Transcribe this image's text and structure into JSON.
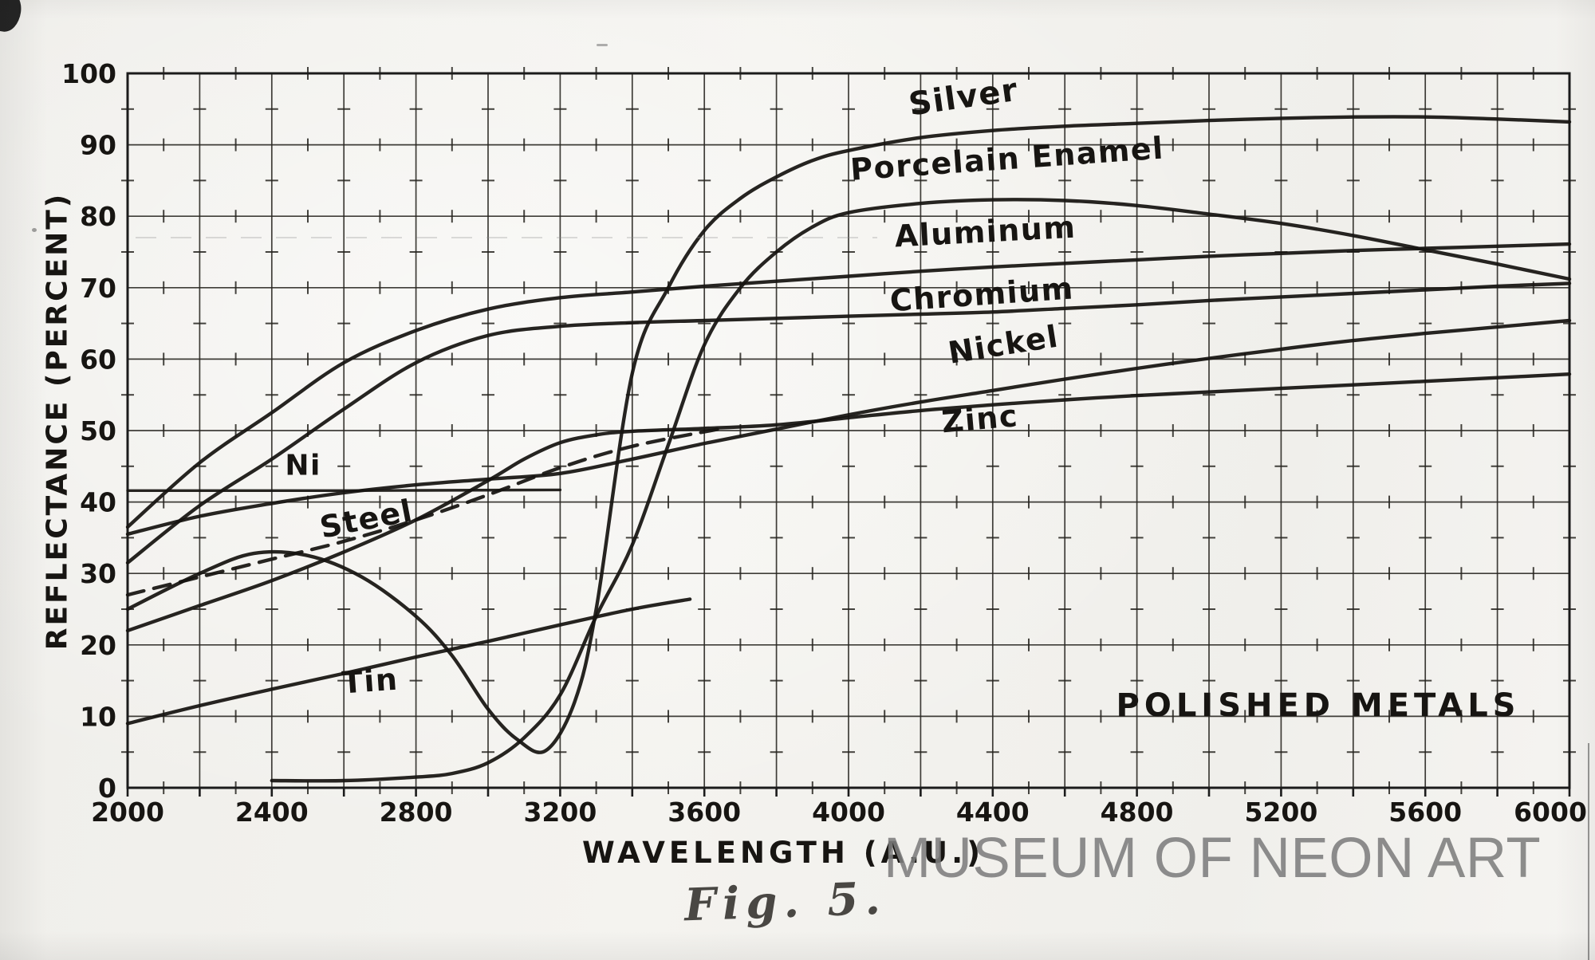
{
  "watermark": "MUSEUM OF NEON ART",
  "figure_caption": "Fig. 5.",
  "chart_data": {
    "type": "line",
    "title": "POLISHED METALS",
    "xlabel": "WAVELENGTH (A.U.)",
    "ylabel": "REFLECTANCE (PERCENT)",
    "xlim": [
      2000,
      6000
    ],
    "ylim": [
      0,
      100
    ],
    "grid": "on",
    "grid_x_step": 200,
    "grid_y_step": 10,
    "minor_tick_x_step": 100,
    "minor_tick_y_step": 5,
    "x_ticks": [
      2000,
      2400,
      2800,
      3200,
      3600,
      4000,
      4400,
      4800,
      5200,
      5600,
      6000
    ],
    "y_ticks": [
      0,
      10,
      20,
      30,
      40,
      50,
      60,
      70,
      80,
      90,
      100
    ],
    "legend_position": "labels-on-curves",
    "title_annotation_position": {
      "x": 5300,
      "y": 11.8
    },
    "ink_color": "#1b1b1b",
    "paper_color": "#f2f1ed",
    "series": [
      {
        "name": "Aluminum",
        "dashed": false,
        "label": {
          "text": "Aluminum",
          "x": 4381,
          "y": 76.4,
          "rotation": -3,
          "size": 38
        },
        "points": [
          [
            2000,
            36.5
          ],
          [
            2200,
            45.5
          ],
          [
            2400,
            52.5
          ],
          [
            2600,
            59.5
          ],
          [
            2800,
            64
          ],
          [
            3000,
            67
          ],
          [
            3200,
            68.6
          ],
          [
            3400,
            69.4
          ],
          [
            3600,
            70.2
          ],
          [
            3800,
            70.9
          ],
          [
            4000,
            71.6
          ],
          [
            4200,
            72.3
          ],
          [
            4400,
            72.9
          ],
          [
            4600,
            73.4
          ],
          [
            4800,
            73.9
          ],
          [
            5000,
            74.4
          ],
          [
            5200,
            74.8
          ],
          [
            5400,
            75.2
          ],
          [
            5600,
            75.5
          ],
          [
            5800,
            75.8
          ],
          [
            6000,
            76.1
          ]
        ]
      },
      {
        "name": "Chromium",
        "dashed": false,
        "label": {
          "text": "Chromium",
          "x": 4372,
          "y": 67.6,
          "rotation": -4,
          "size": 38
        },
        "points": [
          [
            2000,
            31.5
          ],
          [
            2200,
            39.5
          ],
          [
            2400,
            46
          ],
          [
            2600,
            53
          ],
          [
            2800,
            59.5
          ],
          [
            3000,
            63.3
          ],
          [
            3200,
            64.6
          ],
          [
            3400,
            65.1
          ],
          [
            3600,
            65.4
          ],
          [
            3800,
            65.7
          ],
          [
            4000,
            66
          ],
          [
            4200,
            66.3
          ],
          [
            4400,
            66.6
          ],
          [
            4600,
            67.1
          ],
          [
            4800,
            67.6
          ],
          [
            5000,
            68.2
          ],
          [
            5200,
            68.7
          ],
          [
            5400,
            69.2
          ],
          [
            5600,
            69.7
          ],
          [
            5800,
            70.2
          ],
          [
            6000,
            70.6
          ]
        ]
      },
      {
        "name": "Nickel",
        "dashed": false,
        "label": {
          "text": "Nickel",
          "x": 4434,
          "y": 60.6,
          "rotation": -9,
          "size": 38
        },
        "points": [
          [
            2000,
            35.5
          ],
          [
            2200,
            38
          ],
          [
            2400,
            39.8
          ],
          [
            2600,
            41.3
          ],
          [
            2800,
            42.4
          ],
          [
            3000,
            43.2
          ],
          [
            3200,
            44
          ],
          [
            3400,
            46
          ],
          [
            3600,
            48.2
          ],
          [
            3800,
            50.2
          ],
          [
            4000,
            52.2
          ],
          [
            4200,
            54
          ],
          [
            4400,
            55.6
          ],
          [
            4600,
            57.2
          ],
          [
            4800,
            58.7
          ],
          [
            5000,
            60.1
          ],
          [
            5200,
            61.4
          ],
          [
            5400,
            62.6
          ],
          [
            5600,
            63.6
          ],
          [
            5800,
            64.5
          ],
          [
            6000,
            65.4
          ]
        ]
      },
      {
        "name": "Zinc",
        "dashed": false,
        "label": {
          "text": "Zinc",
          "x": 4367,
          "y": 50.2,
          "rotation": -5,
          "size": 38
        },
        "points": [
          [
            2000,
            22
          ],
          [
            2200,
            25.5
          ],
          [
            2400,
            29
          ],
          [
            2600,
            33
          ],
          [
            2800,
            37.5
          ],
          [
            3000,
            43
          ],
          [
            3100,
            46
          ],
          [
            3200,
            48.3
          ],
          [
            3300,
            49.4
          ],
          [
            3400,
            49.9
          ],
          [
            3600,
            50.3
          ],
          [
            3800,
            50.8
          ],
          [
            4000,
            51.8
          ],
          [
            4200,
            52.8
          ],
          [
            4400,
            53.6
          ],
          [
            4600,
            54.3
          ],
          [
            4800,
            54.9
          ],
          [
            5000,
            55.4
          ],
          [
            5200,
            55.9
          ],
          [
            5400,
            56.4
          ],
          [
            5600,
            56.9
          ],
          [
            5800,
            57.4
          ],
          [
            6000,
            57.9
          ]
        ]
      },
      {
        "name": "Ni",
        "dashed": false,
        "thin": true,
        "label": {
          "text": "Ni",
          "x": 2487,
          "y": 43.8,
          "rotation": 0,
          "size": 36
        },
        "points": [
          [
            2000,
            41.6
          ],
          [
            2600,
            41.6
          ],
          [
            3200,
            41.7
          ]
        ]
      },
      {
        "name": "Steel",
        "dashed": true,
        "label": {
          "text": "Steel",
          "x": 2668,
          "y": 36.2,
          "rotation": -11,
          "size": 38
        },
        "points": [
          [
            2000,
            27
          ],
          [
            2200,
            29.5
          ],
          [
            2400,
            32
          ],
          [
            2600,
            34.5
          ],
          [
            2800,
            37.5
          ],
          [
            3000,
            41
          ],
          [
            3200,
            44.8
          ],
          [
            3400,
            47.8
          ],
          [
            3650,
            50.3
          ]
        ]
      },
      {
        "name": "Tin",
        "dashed": false,
        "label": {
          "text": "Tin",
          "x": 2675,
          "y": 13.5,
          "rotation": -4,
          "size": 38
        },
        "points": [
          [
            2000,
            9
          ],
          [
            2200,
            11.5
          ],
          [
            2400,
            13.8
          ],
          [
            2600,
            16
          ],
          [
            2800,
            18.3
          ],
          [
            3000,
            20.5
          ],
          [
            3200,
            22.8
          ],
          [
            3400,
            25
          ],
          [
            3560,
            26.4
          ]
        ]
      },
      {
        "name": "Porcelain Enamel",
        "dashed": false,
        "label": {
          "text": "Porcelain Enamel",
          "x": 4442,
          "y": 86.6,
          "rotation": -4,
          "size": 38
        },
        "points": [
          [
            2400,
            1
          ],
          [
            2600,
            1
          ],
          [
            2800,
            1.5
          ],
          [
            2900,
            2
          ],
          [
            3000,
            3.5
          ],
          [
            3100,
            7
          ],
          [
            3200,
            13
          ],
          [
            3300,
            24
          ],
          [
            3400,
            34
          ],
          [
            3500,
            48
          ],
          [
            3600,
            62
          ],
          [
            3700,
            70
          ],
          [
            3800,
            75
          ],
          [
            3900,
            78.5
          ],
          [
            4000,
            80.5
          ],
          [
            4200,
            81.8
          ],
          [
            4400,
            82.3
          ],
          [
            4600,
            82.2
          ],
          [
            4800,
            81.5
          ],
          [
            5000,
            80.3
          ],
          [
            5200,
            79
          ],
          [
            5400,
            77.3
          ],
          [
            5600,
            75.3
          ],
          [
            5800,
            73.3
          ],
          [
            6000,
            71.2
          ]
        ]
      },
      {
        "name": "Silver",
        "dashed": false,
        "label": {
          "text": "Silver",
          "x": 4323,
          "y": 95.2,
          "rotation": -8,
          "size": 40
        },
        "points": [
          [
            2000,
            25
          ],
          [
            2200,
            30
          ],
          [
            2350,
            32.8
          ],
          [
            2500,
            32.5
          ],
          [
            2650,
            29.5
          ],
          [
            2800,
            24
          ],
          [
            2900,
            18.5
          ],
          [
            3000,
            11
          ],
          [
            3080,
            6.8
          ],
          [
            3160,
            5.2
          ],
          [
            3240,
            12
          ],
          [
            3300,
            25
          ],
          [
            3400,
            58
          ],
          [
            3500,
            70
          ],
          [
            3600,
            78
          ],
          [
            3700,
            82.5
          ],
          [
            3800,
            85.5
          ],
          [
            3900,
            87.8
          ],
          [
            4000,
            89.2
          ],
          [
            4200,
            91
          ],
          [
            4400,
            92
          ],
          [
            4600,
            92.6
          ],
          [
            4800,
            93
          ],
          [
            5000,
            93.4
          ],
          [
            5200,
            93.7
          ],
          [
            5400,
            93.9
          ],
          [
            5600,
            93.9
          ],
          [
            5800,
            93.6
          ],
          [
            6000,
            93.2
          ]
        ]
      }
    ]
  }
}
